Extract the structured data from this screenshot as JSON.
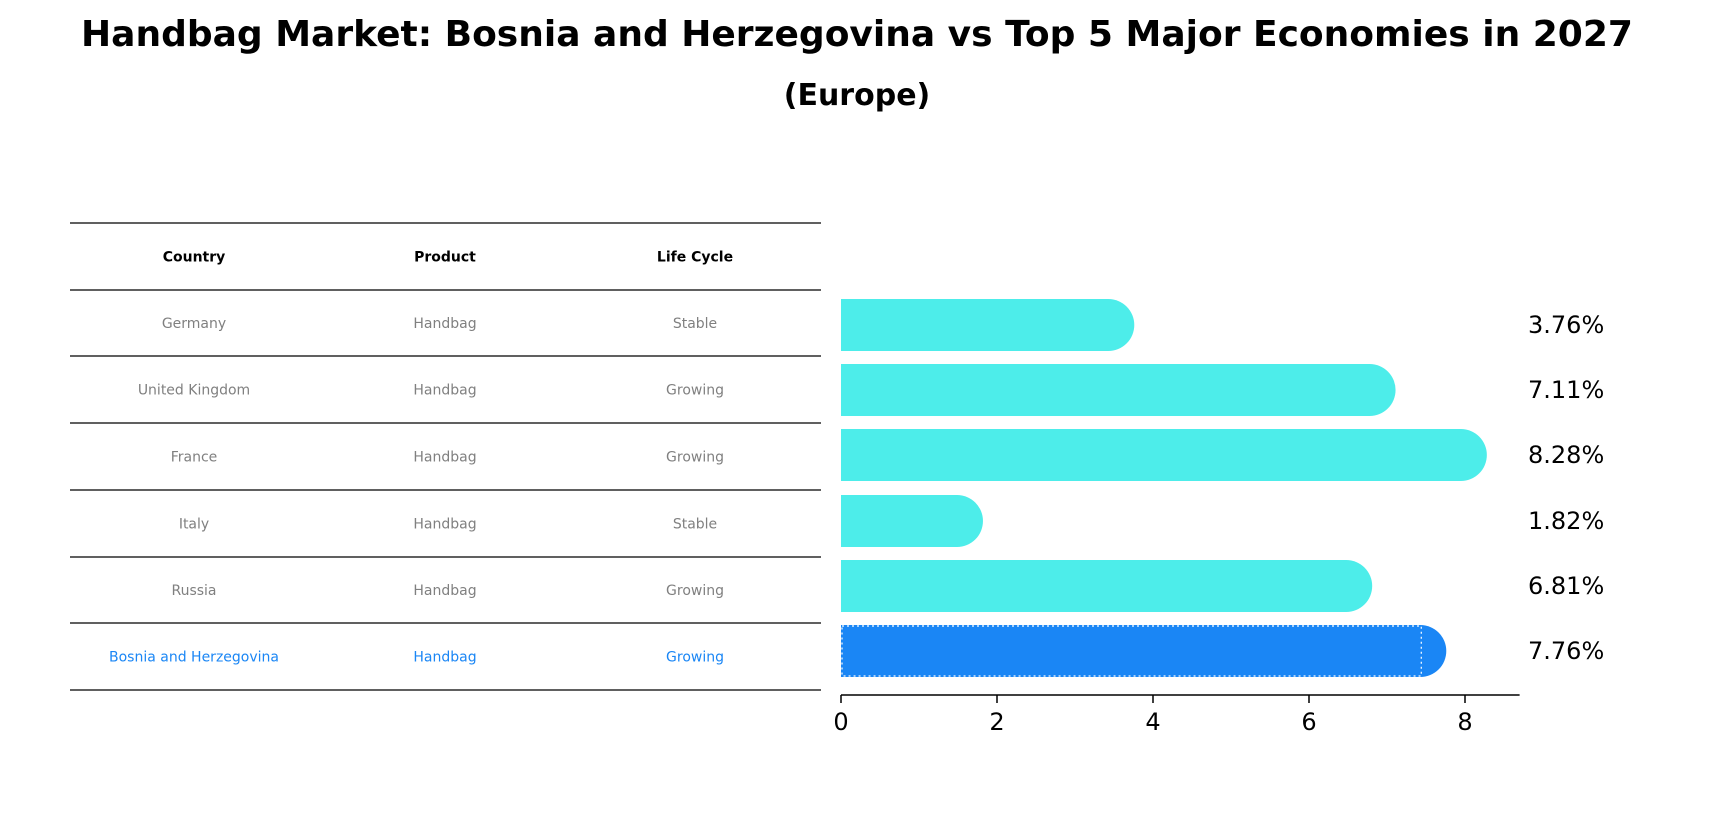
{
  "title": "Handbag Market: Bosnia and Herzegovina vs Top 5 Major Economies in 2027",
  "subtitle": "(Europe)",
  "colors": {
    "bar": "#4DEDEA",
    "highlight": "#1A86F5",
    "table_text": "#808080",
    "header_text": "#000000"
  },
  "table": {
    "headers": [
      "Country",
      "Product",
      "Life Cycle"
    ],
    "rows": [
      {
        "country": "Germany",
        "product": "Handbag",
        "life_cycle": "Stable",
        "highlight": false
      },
      {
        "country": "United Kingdom",
        "product": "Handbag",
        "life_cycle": "Growing",
        "highlight": false
      },
      {
        "country": "France",
        "product": "Handbag",
        "life_cycle": "Growing",
        "highlight": false
      },
      {
        "country": "Italy",
        "product": "Handbag",
        "life_cycle": "Stable",
        "highlight": false
      },
      {
        "country": "Russia",
        "product": "Handbag",
        "life_cycle": "Growing",
        "highlight": false
      },
      {
        "country": "Bosnia and Herzegovina",
        "product": "Handbag",
        "life_cycle": "Growing",
        "highlight": true
      }
    ]
  },
  "chart_data": {
    "type": "bar",
    "orientation": "horizontal",
    "title": "Handbag Market: Bosnia and Herzegovina vs Top 5 Major Economies in 2027",
    "subtitle": "(Europe)",
    "categories": [
      "Germany",
      "United Kingdom",
      "France",
      "Italy",
      "Russia",
      "Bosnia and Herzegovina"
    ],
    "values": [
      3.76,
      7.11,
      8.28,
      1.82,
      6.81,
      7.76
    ],
    "value_labels": [
      "3.76%",
      "7.11%",
      "8.28%",
      "1.82%",
      "6.81%",
      "7.76%"
    ],
    "highlight_index": 5,
    "xlim": [
      0,
      8.7
    ],
    "xticks": [
      0,
      2,
      4,
      6,
      8
    ],
    "xlabel": "",
    "ylabel": "",
    "grid": false
  }
}
